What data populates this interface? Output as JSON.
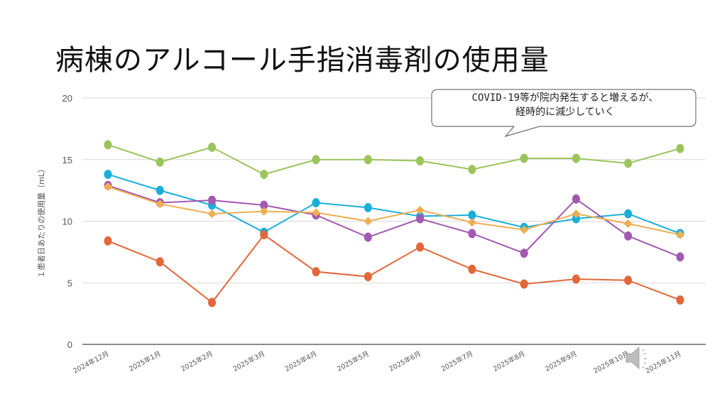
{
  "slide": {
    "title": "病棟のアルコール手指消毒剤の使用量"
  },
  "callout": {
    "line1": "COVID-19等が院内発生すると増えるが、",
    "line2": "経時的に減少していく"
  },
  "audio": {
    "icon": "speaker-icon"
  },
  "chart_data": {
    "type": "line",
    "title": "病棟のアルコール手指消毒剤の使用量",
    "xlabel": "",
    "ylabel": "１患者日あたりの使用量（mL）",
    "ylim": [
      0,
      20
    ],
    "yticks": [
      0,
      5,
      10,
      15,
      20
    ],
    "grid": true,
    "legend": "none",
    "categories": [
      "2024年12月",
      "2025年1月",
      "2025年2月",
      "2025年3月",
      "2025年4月",
      "2025年5月",
      "2025年6月",
      "2025年7月",
      "2025年8月",
      "2025年9月",
      "2025年10月",
      "2025年11月"
    ],
    "series": [
      {
        "name": "series-green",
        "color": "#9BC45B",
        "marker": "circle",
        "values": [
          16.2,
          14.8,
          16.0,
          13.8,
          15.0,
          15.0,
          14.9,
          14.2,
          15.1,
          15.1,
          14.7,
          15.9
        ]
      },
      {
        "name": "series-blue",
        "color": "#1AAFD9",
        "marker": "circle",
        "values": [
          13.8,
          12.5,
          11.3,
          9.1,
          11.5,
          11.1,
          10.4,
          10.5,
          9.5,
          10.2,
          10.6,
          9.0
        ]
      },
      {
        "name": "series-purple",
        "color": "#A259B0",
        "marker": "circle",
        "values": [
          12.9,
          11.5,
          11.7,
          11.3,
          10.5,
          8.7,
          10.2,
          9.0,
          7.4,
          11.8,
          8.8,
          7.1
        ]
      },
      {
        "name": "series-yellow",
        "color": "#EFAE52",
        "marker": "diamond",
        "values": [
          12.8,
          11.4,
          10.6,
          10.8,
          10.7,
          10.0,
          10.9,
          9.9,
          9.3,
          10.6,
          9.8,
          8.9
        ]
      },
      {
        "name": "series-red",
        "color": "#E2673A",
        "marker": "circle",
        "values": [
          8.4,
          6.7,
          3.4,
          8.9,
          5.9,
          5.5,
          7.9,
          6.1,
          4.9,
          5.3,
          5.2,
          3.6
        ]
      }
    ]
  }
}
